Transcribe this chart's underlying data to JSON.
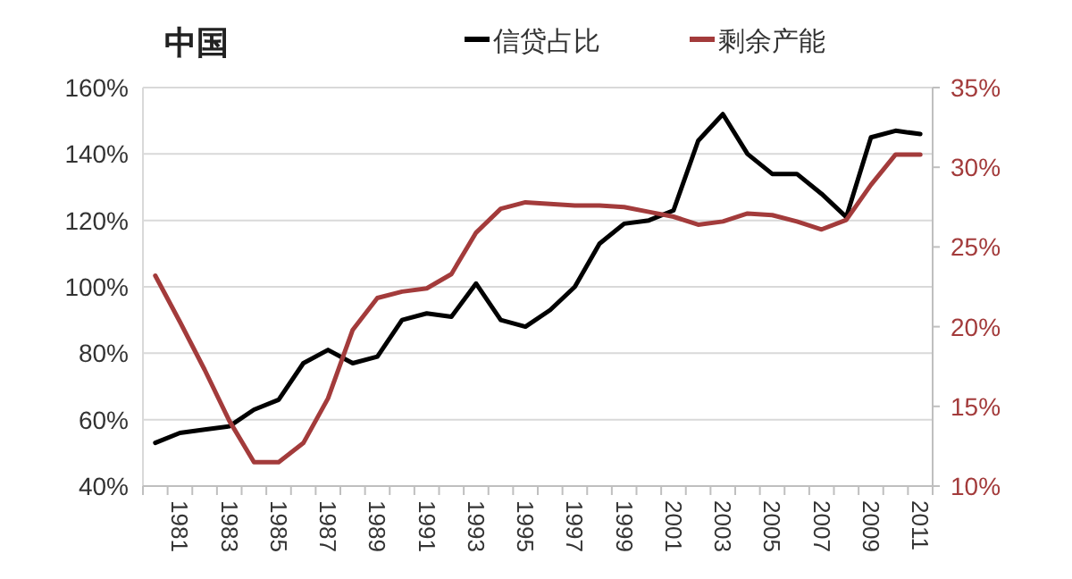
{
  "chart_data": {
    "type": "line",
    "title": "中国",
    "categories": [
      null,
      "1981",
      null,
      "1983",
      null,
      "1985",
      null,
      "1987",
      null,
      "1989",
      null,
      "1991",
      null,
      "1993",
      null,
      "1995",
      null,
      "1997",
      null,
      "1999",
      null,
      "2001",
      null,
      "2003",
      null,
      "2005",
      null,
      "2007",
      null,
      "2009",
      null,
      "2011"
    ],
    "series": [
      {
        "name": "信贷占比",
        "color": "#000000",
        "values": [
          53,
          56,
          57,
          58,
          63,
          66,
          77,
          81,
          77,
          79,
          90,
          92,
          91,
          101,
          90,
          88,
          93,
          100,
          113,
          119,
          120,
          123,
          144,
          152,
          140,
          134,
          134,
          128,
          121,
          145,
          147,
          146
        ]
      },
      {
        "name": "剩余产能",
        "color": "#a33b3b",
        "axis": "y2",
        "values": [
          23.2,
          20.3,
          17.3,
          14.1,
          11.5,
          11.5,
          12.7,
          15.5,
          19.8,
          21.8,
          22.2,
          22.4,
          23.3,
          25.9,
          27.4,
          27.8,
          27.7,
          27.6,
          27.6,
          27.5,
          27.2,
          26.9,
          26.4,
          26.6,
          27.1,
          27.0,
          26.6,
          26.1,
          26.7,
          28.9,
          30.8,
          30.8
        ]
      }
    ],
    "ylim": [
      40,
      160
    ],
    "yticks": [
      {
        "value": 40,
        "label": "40%"
      },
      {
        "value": 60,
        "label": "60%"
      },
      {
        "value": 80,
        "label": "80%"
      },
      {
        "value": 100,
        "label": "100%"
      },
      {
        "value": 120,
        "label": "120%"
      },
      {
        "value": 140,
        "label": "140%"
      },
      {
        "value": 160,
        "label": "160%"
      }
    ],
    "y2lim": [
      10,
      35
    ],
    "y2ticks": [
      {
        "value": 10,
        "label": "10%"
      },
      {
        "value": 15,
        "label": "15%"
      },
      {
        "value": 20,
        "label": "20%"
      },
      {
        "value": 25,
        "label": "25%"
      },
      {
        "value": 30,
        "label": "30%"
      },
      {
        "value": 35,
        "label": "35%"
      }
    ],
    "grid": "y",
    "legend": "top",
    "marker": "none",
    "line_style": "solid"
  }
}
